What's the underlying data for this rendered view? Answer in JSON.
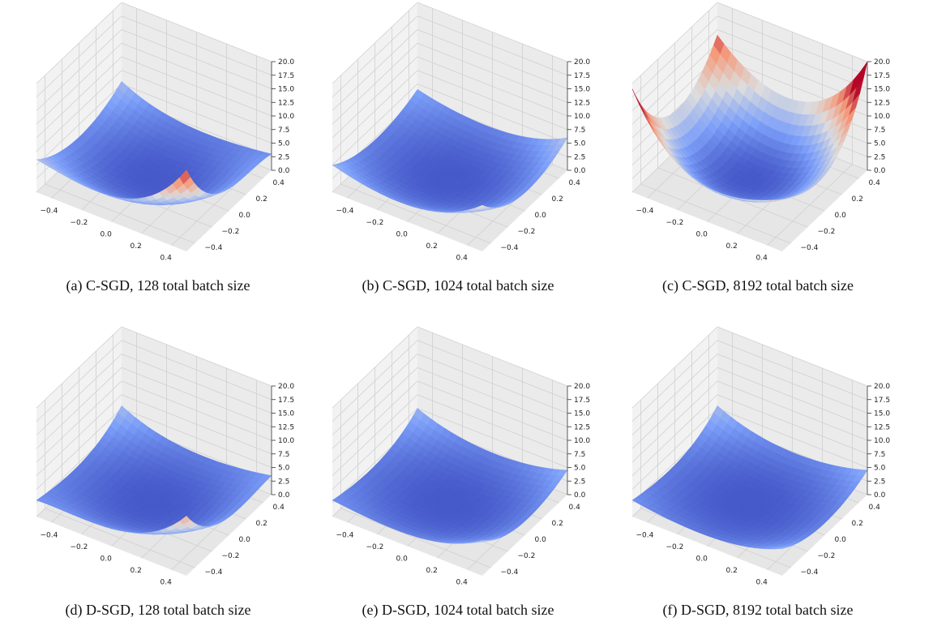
{
  "figure": {
    "captions": [
      "(a) C-SGD, 128 total batch size",
      "(b) C-SGD, 1024 total batch size",
      "(c) C-SGD, 8192 total batch size",
      "(d) D-SGD, 128 total batch size",
      "(e) D-SGD, 1024 total batch size",
      "(f) D-SGD, 8192 total batch size"
    ]
  },
  "chart_data": [
    {
      "type": "surface",
      "caption": "(a) C-SGD, 128 total batch size",
      "x_ticks": [
        "−0.4",
        "−0.2",
        "0.0",
        "0.2",
        "0.4"
      ],
      "y_ticks": [
        "−0.4",
        "−0.2",
        "0.0",
        "0.2",
        "0.4"
      ],
      "z_ticks": [
        "0.0",
        "2.5",
        "5.0",
        "7.5",
        "10.0",
        "12.5",
        "15.0",
        "17.5",
        "20.0"
      ],
      "xlim": [
        -0.5,
        0.5
      ],
      "ylim": [
        -0.5,
        0.5
      ],
      "zlim": [
        0,
        20
      ],
      "colormap": "coolwarm",
      "surface": {
        "min": 0.3,
        "corner_values": {
          "x-0.5_y0.5": 5.5,
          "x0.5_y0.5": 3.0,
          "x-0.5_y-0.5": 6.0,
          "x0.5_y-0.5": 15.0
        }
      }
    },
    {
      "type": "surface",
      "caption": "(b) C-SGD, 1024 total batch size",
      "x_ticks": [
        "−0.4",
        "−0.2",
        "0.0",
        "0.2",
        "0.4"
      ],
      "y_ticks": [
        "−0.4",
        "−0.2",
        "0.0",
        "0.2",
        "0.4"
      ],
      "z_ticks": [
        "0.0",
        "2.5",
        "5.0",
        "7.5",
        "10.0",
        "12.5",
        "15.0",
        "17.5",
        "20.0"
      ],
      "xlim": [
        -0.5,
        0.5
      ],
      "ylim": [
        -0.5,
        0.5
      ],
      "zlim": [
        0,
        20
      ],
      "colormap": "coolwarm",
      "surface": {
        "min": 0.3,
        "corner_values": {
          "x-0.5_y0.5": 4.0,
          "x0.5_y0.5": 6.0,
          "x-0.5_y-0.5": 5.0,
          "x0.5_y-0.5": 8.5
        }
      }
    },
    {
      "type": "surface",
      "caption": "(c) C-SGD, 8192 total batch size",
      "x_ticks": [
        "−0.4",
        "−0.2",
        "0.0",
        "0.2",
        "0.4"
      ],
      "y_ticks": [
        "−0.4",
        "−0.2",
        "0.0",
        "0.2",
        "0.4"
      ],
      "z_ticks": [
        "0.0",
        "2.5",
        "5.0",
        "7.5",
        "10.0",
        "12.5",
        "15.0",
        "17.5",
        "20.0"
      ],
      "xlim": [
        -0.5,
        0.5
      ],
      "ylim": [
        -0.5,
        0.5
      ],
      "zlim": [
        0,
        20
      ],
      "colormap": "coolwarm",
      "surface": {
        "min": 0.3,
        "corner_values": {
          "x-0.5_y0.5": 14.0,
          "x0.5_y0.5": 20.0,
          "x-0.5_y-0.5": 19.0,
          "x0.5_y-0.5": 9.5
        }
      }
    },
    {
      "type": "surface",
      "caption": "(d) D-SGD, 128 total batch size",
      "x_ticks": [
        "−0.4",
        "−0.2",
        "0.0",
        "0.2",
        "0.4"
      ],
      "y_ticks": [
        "−0.4",
        "−0.2",
        "0.0",
        "0.2",
        "0.4"
      ],
      "z_ticks": [
        "0.0",
        "2.5",
        "5.0",
        "7.5",
        "10.0",
        "12.5",
        "15.0",
        "17.5",
        "20.0"
      ],
      "xlim": [
        -0.5,
        0.5
      ],
      "ylim": [
        -0.5,
        0.5
      ],
      "zlim": [
        0,
        20
      ],
      "colormap": "coolwarm",
      "surface": {
        "min": 0.3,
        "corner_values": {
          "x-0.5_y0.5": 5.5,
          "x0.5_y0.5": 3.5,
          "x-0.5_y-0.5": 3.0,
          "x0.5_y-0.5": 11.0
        }
      }
    },
    {
      "type": "surface",
      "caption": "(e) D-SGD, 1024 total batch size",
      "x_ticks": [
        "−0.4",
        "−0.2",
        "0.0",
        "0.2",
        "0.4"
      ],
      "y_ticks": [
        "−0.4",
        "−0.2",
        "0.0",
        "0.2",
        "0.4"
      ],
      "z_ticks": [
        "0.0",
        "2.5",
        "5.0",
        "7.5",
        "10.0",
        "12.5",
        "15.0",
        "17.5",
        "20.0"
      ],
      "xlim": [
        -0.5,
        0.5
      ],
      "ylim": [
        -0.5,
        0.5
      ],
      "zlim": [
        0,
        20
      ],
      "colormap": "coolwarm",
      "surface": {
        "min": 0.3,
        "corner_values": {
          "x-0.5_y0.5": 5.0,
          "x0.5_y0.5": 4.5,
          "x-0.5_y-0.5": 3.0,
          "x0.5_y-0.5": 6.5
        }
      }
    },
    {
      "type": "surface",
      "caption": "(f) D-SGD, 8192 total batch size",
      "x_ticks": [
        "−0.4",
        "−0.2",
        "0.0",
        "0.2",
        "0.4"
      ],
      "y_ticks": [
        "−0.4",
        "−0.2",
        "0.0",
        "0.2",
        "0.4"
      ],
      "z_ticks": [
        "0.0",
        "2.5",
        "5.0",
        "7.5",
        "10.0",
        "12.5",
        "15.0",
        "17.5",
        "20.0"
      ],
      "xlim": [
        -0.5,
        0.5
      ],
      "ylim": [
        -0.5,
        0.5
      ],
      "zlim": [
        0,
        20
      ],
      "colormap": "coolwarm",
      "surface": {
        "min": 0.3,
        "corner_values": {
          "x-0.5_y0.5": 5.5,
          "x0.5_y0.5": 4.5,
          "x-0.5_y-0.5": 3.0,
          "x0.5_y-0.5": 5.0
        }
      }
    }
  ]
}
